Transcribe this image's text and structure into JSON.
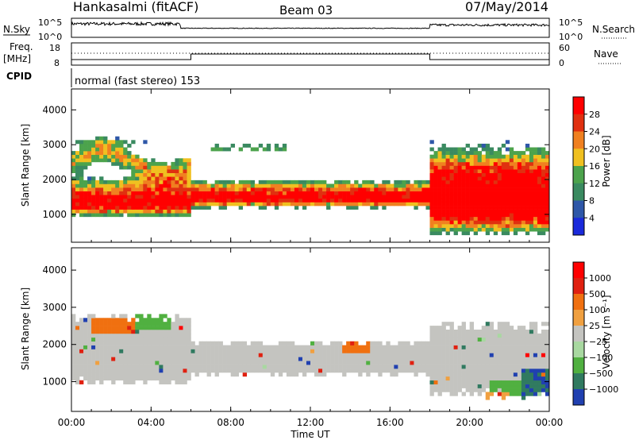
{
  "header": {
    "station": "Hankasalmi (fitACF)",
    "beam": "Beam 03",
    "date": "07/May/2014"
  },
  "top_panels": {
    "nsky_label": "N.Sky",
    "nsearch_label": "N.Search",
    "noise_ticks": [
      "10^5",
      "10^0"
    ],
    "freq_label_1": "Freq.",
    "freq_label_2": "[MHz]",
    "freq_ticks": [
      "8",
      "18"
    ],
    "nave_label": "Nave",
    "nave_ticks": [
      "60",
      "0"
    ],
    "cpid_label": "CPID",
    "cpid_text": "normal (fast stereo) 153"
  },
  "chart_data": [
    {
      "type": "heatmap",
      "name": "power",
      "ylabel": "Slant Range [km]",
      "ylim": [
        200,
        4600
      ],
      "yticks": [
        "1000",
        "2000",
        "3000",
        "4000"
      ],
      "colorbar_label": "Power [dB]",
      "colorbar_ticks": [
        "4",
        "8",
        "12",
        "16",
        "20",
        "24",
        "28"
      ],
      "colors": [
        "#1a2adb",
        "#2e57a8",
        "#3a8a60",
        "#4ca34c",
        "#f0c020",
        "#f08020",
        "#e03010",
        "#ff0000"
      ]
    },
    {
      "type": "heatmap",
      "name": "velocity",
      "ylabel": "Slant Range [km]",
      "ylim": [
        200,
        4600
      ],
      "yticks": [
        "1000",
        "2000",
        "3000",
        "4000"
      ],
      "colorbar_label": "Velocity [m s⁻¹]",
      "colorbar_ticks": [
        "1000",
        "500",
        "100",
        "25",
        "−25",
        "−100",
        "−500",
        "−1000"
      ],
      "colors": [
        "#2040b0",
        "#307a60",
        "#50b040",
        "#a8d8a0",
        "#c4c4c0",
        "#f0a040",
        "#f07010",
        "#e02010",
        "#ff0000"
      ]
    }
  ],
  "xaxis": {
    "label": "Time UT",
    "ticks": [
      "00:00",
      "04:00",
      "08:00",
      "12:00",
      "16:00",
      "20:00",
      "00:00"
    ]
  }
}
